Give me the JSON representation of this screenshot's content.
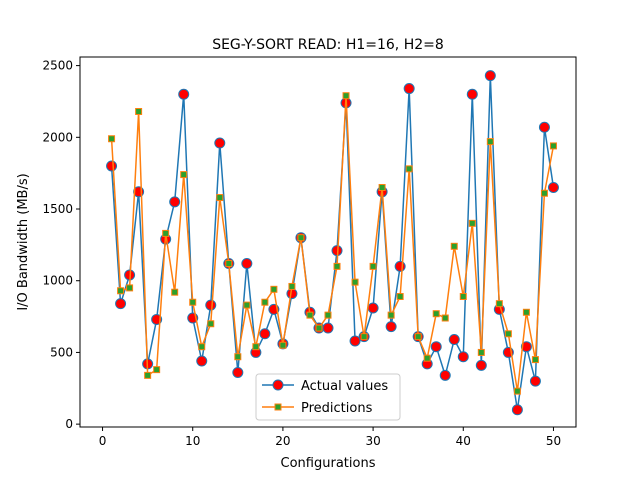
{
  "chart_data": {
    "type": "line",
    "title": "SEG-Y-SORT READ: H1=16, H2=8",
    "xlabel": "Configurations",
    "ylabel": "I/O Bandwidth (MB/s)",
    "xlim": [
      -2.5,
      52.5
    ],
    "ylim": [
      -20,
      2560
    ],
    "xticks": [
      0,
      10,
      20,
      30,
      40,
      50
    ],
    "yticks": [
      0,
      500,
      1000,
      1500,
      2000,
      2500
    ],
    "legend_position": "lower-center",
    "x": [
      1,
      2,
      3,
      4,
      5,
      6,
      7,
      8,
      9,
      10,
      11,
      12,
      13,
      14,
      15,
      16,
      17,
      18,
      19,
      20,
      21,
      22,
      23,
      24,
      25,
      26,
      27,
      28,
      29,
      30,
      31,
      32,
      33,
      34,
      35,
      36,
      37,
      38,
      39,
      40,
      41,
      42,
      43,
      44,
      45,
      46,
      47,
      48,
      49,
      50
    ],
    "series": [
      {
        "name": "Actual values",
        "color": "#1f77b4",
        "marker": "circle",
        "marker_face": "#ff0000",
        "values": [
          1800,
          840,
          1040,
          1620,
          420,
          730,
          1290,
          1550,
          2300,
          740,
          440,
          830,
          1960,
          1120,
          360,
          1120,
          500,
          630,
          800,
          560,
          910,
          1300,
          780,
          670,
          670,
          1210,
          2240,
          580,
          610,
          810,
          1620,
          680,
          1100,
          2340,
          610,
          420,
          540,
          340,
          590,
          470,
          2300,
          410,
          2430,
          800,
          500,
          100,
          540,
          300,
          2070,
          1650
        ],
        "markers": true
      },
      {
        "name": "Predictions",
        "color": "#ff7f0e",
        "marker": "square",
        "marker_face": "#2ca02c",
        "values": [
          1990,
          930,
          950,
          2180,
          340,
          380,
          1330,
          920,
          1740,
          850,
          540,
          700,
          1580,
          1120,
          470,
          830,
          540,
          850,
          940,
          550,
          960,
          1300,
          760,
          670,
          760,
          1100,
          2290,
          990,
          610,
          1100,
          1650,
          760,
          890,
          1780,
          610,
          460,
          770,
          740,
          1240,
          890,
          1400,
          500,
          1970,
          840,
          630,
          230,
          780,
          450,
          1610,
          1940
        ],
        "markers": true
      }
    ]
  }
}
